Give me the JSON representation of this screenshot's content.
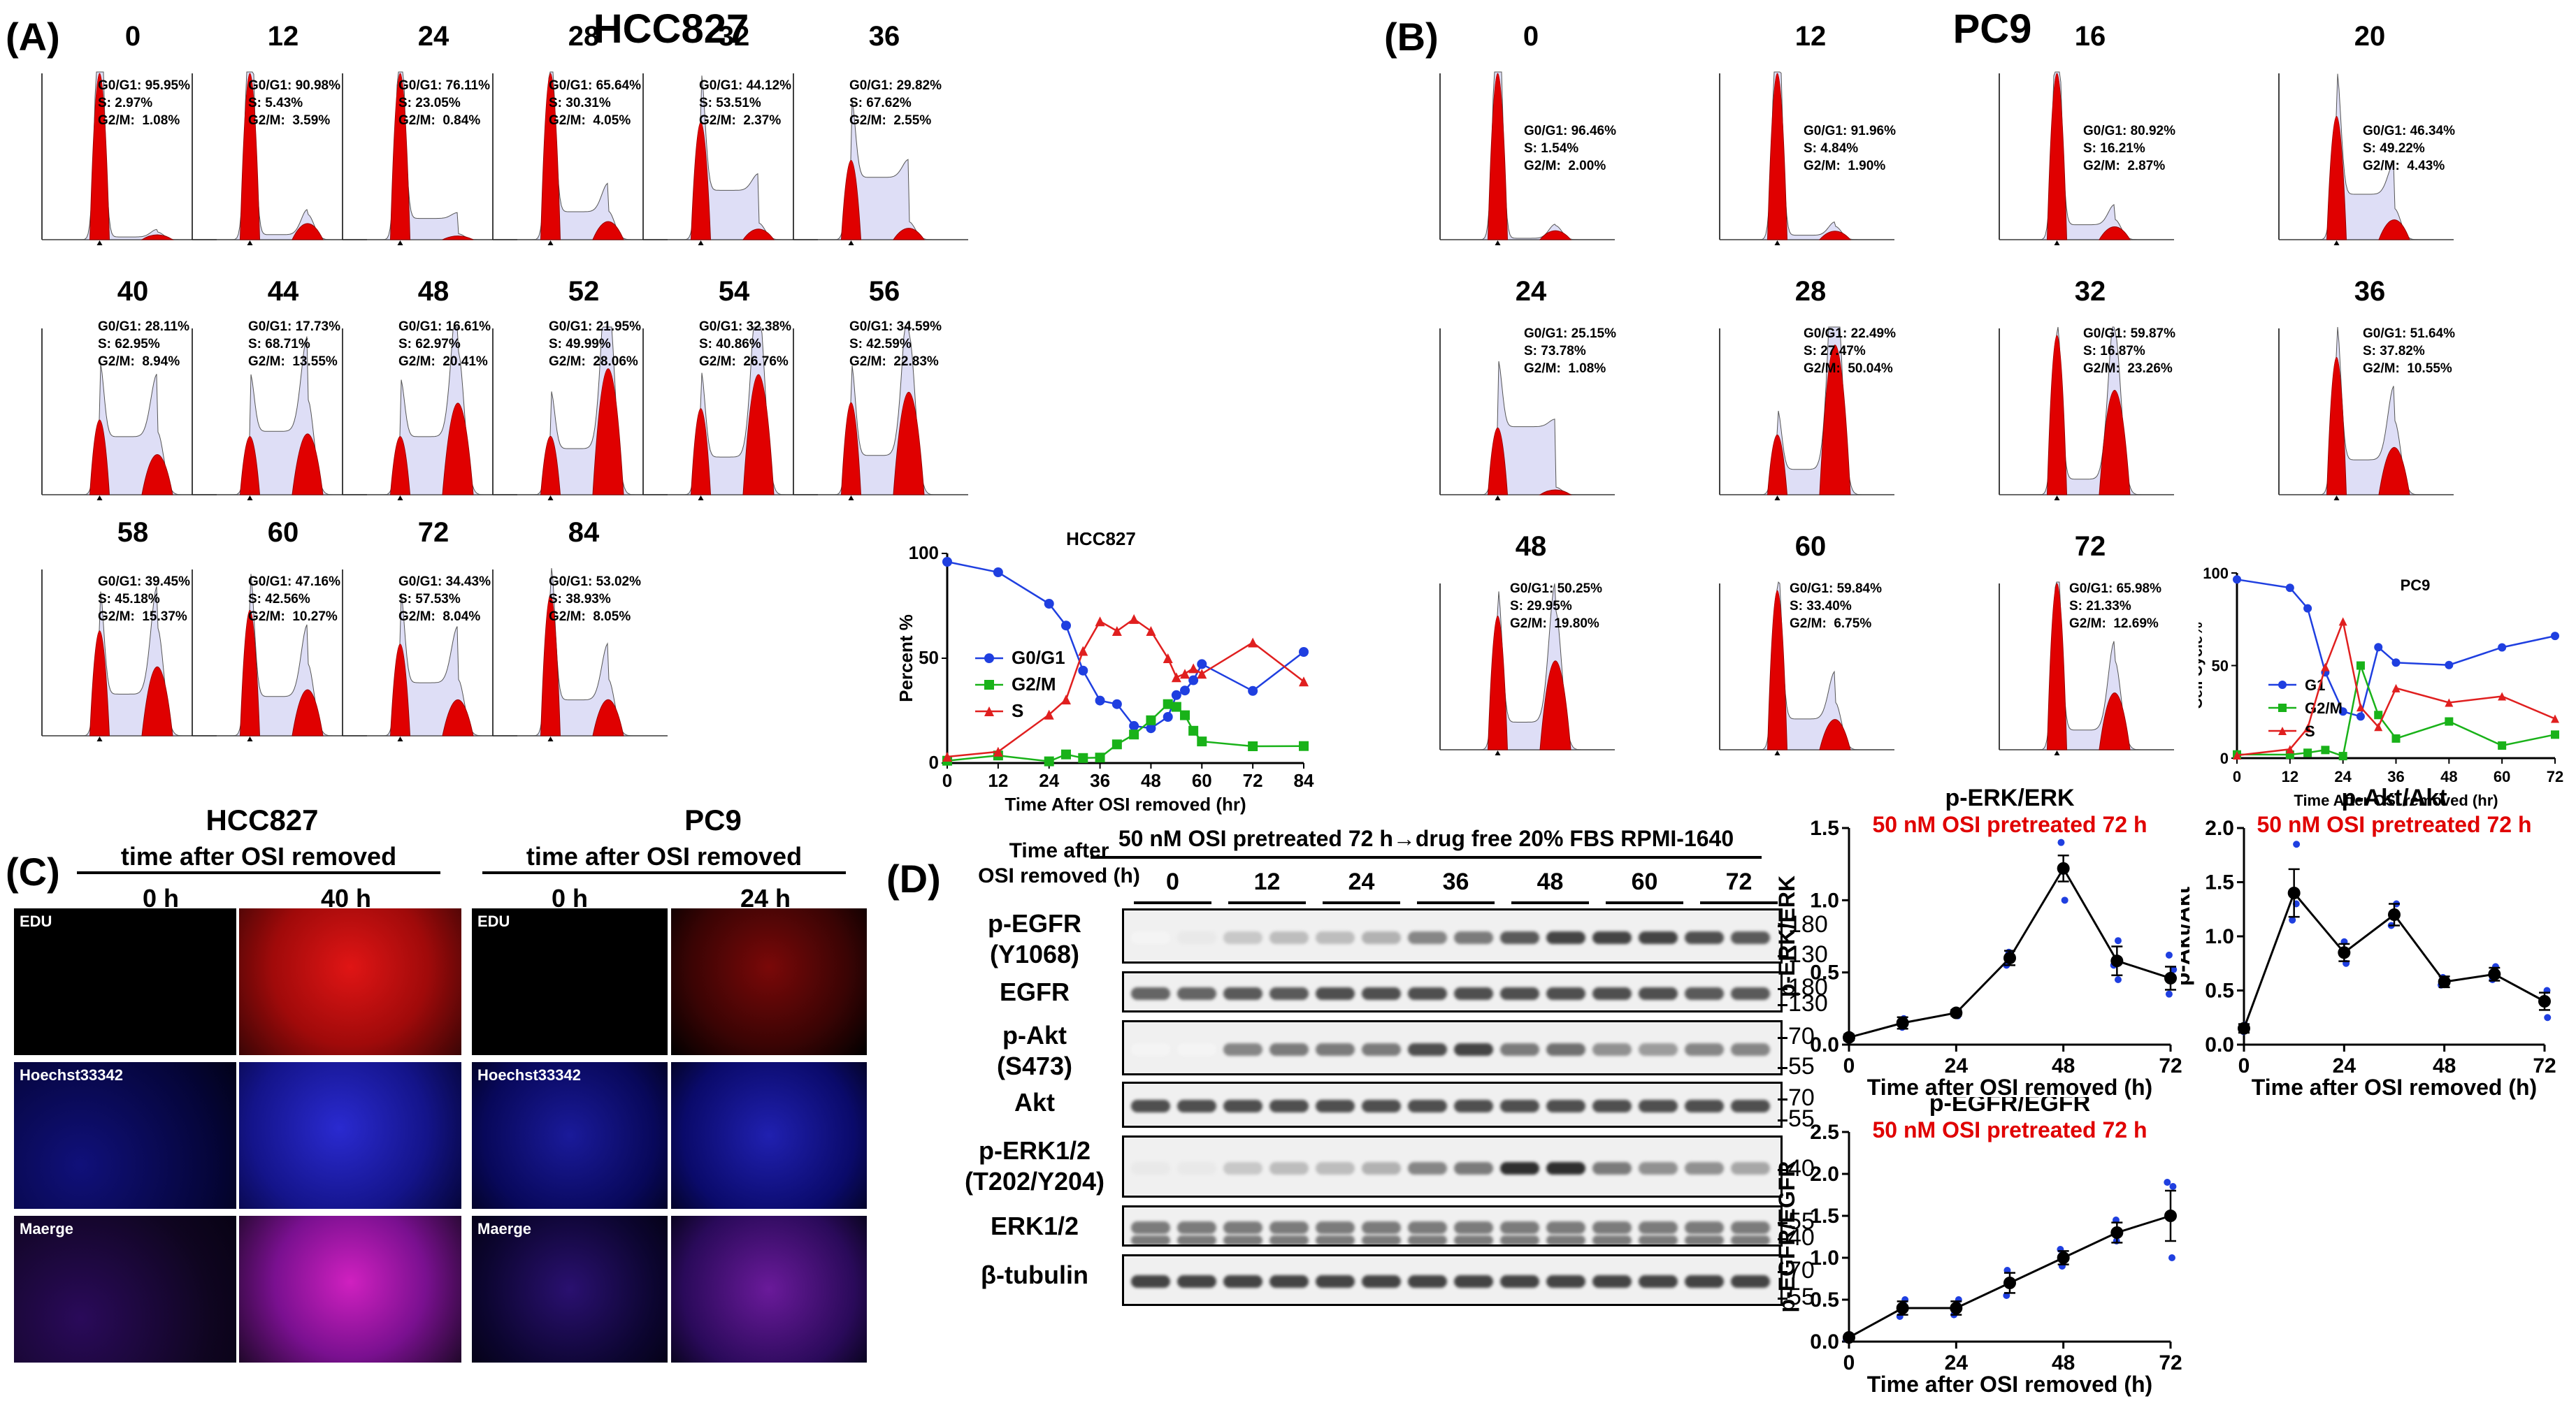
{
  "panel_labels": {
    "A": "(A)",
    "B": "(B)",
    "C": "(C)",
    "D": "(D)"
  },
  "titles": {
    "hcc827": "HCC827",
    "pc9": "PC9"
  },
  "hcc827_hists": [
    {
      "t": "0",
      "g1": "G0/G1: 95.95%",
      "s": "S: 2.97%",
      "g2": "G2/M:  1.08%"
    },
    {
      "t": "12",
      "g1": "G0/G1: 90.98%",
      "s": "S: 5.43%",
      "g2": "G2/M:  3.59%"
    },
    {
      "t": "24",
      "g1": "G0/G1: 76.11%",
      "s": "S: 23.05%",
      "g2": "G2/M:  0.84%"
    },
    {
      "t": "28",
      "g1": "G0/G1: 65.64%",
      "s": "S: 30.31%",
      "g2": "G2/M:  4.05%"
    },
    {
      "t": "32",
      "g1": "G0/G1: 44.12%",
      "s": "S: 53.51%",
      "g2": "G2/M:  2.37%"
    },
    {
      "t": "36",
      "g1": "G0/G1: 29.82%",
      "s": "S: 67.62%",
      "g2": "G2/M:  2.55%"
    },
    {
      "t": "40",
      "g1": "G0/G1: 28.11%",
      "s": "S: 62.95%",
      "g2": "G2/M:  8.94%"
    },
    {
      "t": "44",
      "g1": "G0/G1: 17.73%",
      "s": "S: 68.71%",
      "g2": "G2/M:  13.55%"
    },
    {
      "t": "48",
      "g1": "G0/G1: 16.61%",
      "s": "S: 62.97%",
      "g2": "G2/M:  20.41%"
    },
    {
      "t": "52",
      "g1": "G0/G1: 21.95%",
      "s": "S: 49.99%",
      "g2": "G2/M:  28.06%"
    },
    {
      "t": "54",
      "g1": "G0/G1: 32.38%",
      "s": "S: 40.86%",
      "g2": "G2/M:  26.76%"
    },
    {
      "t": "56",
      "g1": "G0/G1: 34.59%",
      "s": "S: 42.59%",
      "g2": "G2/M:  22.83%"
    },
    {
      "t": "58",
      "g1": "G0/G1: 39.45%",
      "s": "S: 45.18%",
      "g2": "G2/M:  15.37%"
    },
    {
      "t": "60",
      "g1": "G0/G1: 47.16%",
      "s": "S: 42.56%",
      "g2": "G2/M:  10.27%"
    },
    {
      "t": "72",
      "g1": "G0/G1: 34.43%",
      "s": "S: 57.53%",
      "g2": "G2/M:  8.04%"
    },
    {
      "t": "84",
      "g1": "G0/G1: 53.02%",
      "s": "S: 38.93%",
      "g2": "G2/M:  8.05%"
    }
  ],
  "pc9_hists": [
    {
      "t": "0",
      "g1": "G0/G1: 96.46%",
      "s": "S: 1.54%",
      "g2": "G2/M:  2.00%"
    },
    {
      "t": "12",
      "g1": "G0/G1: 91.96%",
      "s": "S: 4.84%",
      "g2": "G2/M:  1.90%"
    },
    {
      "t": "16",
      "g1": "G0/G1: 80.92%",
      "s": "S: 16.21%",
      "g2": "G2/M:  2.87%"
    },
    {
      "t": "20",
      "g1": "G0/G1: 46.34%",
      "s": "S: 49.22%",
      "g2": "G2/M:  4.43%"
    },
    {
      "t": "24",
      "g1": "G0/G1: 25.15%",
      "s": "S: 73.78%",
      "g2": "G2/M:  1.08%"
    },
    {
      "t": "28",
      "g1": "G0/G1: 22.49%",
      "s": "S: 27.47%",
      "g2": "G2/M:  50.04%"
    },
    {
      "t": "32",
      "g1": "G0/G1: 59.87%",
      "s": "S: 16.87%",
      "g2": "G2/M:  23.26%"
    },
    {
      "t": "36",
      "g1": "G0/G1: 51.64%",
      "s": "S: 37.82%",
      "g2": "G2/M:  10.55%"
    },
    {
      "t": "48",
      "g1": "G0/G1: 50.25%",
      "s": "S: 29.95%",
      "g2": "G2/M:  19.80%"
    },
    {
      "t": "60",
      "g1": "G0/G1: 59.84%",
      "s": "S: 33.40%",
      "g2": "G2/M:  6.75%"
    },
    {
      "t": "72",
      "g1": "G0/G1: 65.98%",
      "s": "S: 21.33%",
      "g2": "G2/M:  12.69%"
    }
  ],
  "microscopy": {
    "hcc827": {
      "title": "HCC827",
      "subtitle": "time after OSI removed",
      "cols": [
        "0 h",
        "40 h"
      ]
    },
    "pc9": {
      "title": "PC9",
      "subtitle": "time after OSI removed",
      "cols": [
        "0 h",
        "24 h"
      ]
    },
    "rows": [
      "EDU",
      "Hoechst33342",
      "Maerge"
    ]
  },
  "western": {
    "header": "50 nM OSI pretreated 72 h→drug free 20% FBS RPMI-1640",
    "time_label": "Time after\nOSI removed (h)",
    "times": [
      "0",
      "12",
      "24",
      "36",
      "48",
      "60",
      "72"
    ],
    "blots": [
      {
        "name": "p-EGFR\n(Y1068)",
        "mw": [
          "180",
          "130"
        ]
      },
      {
        "name": "EGFR",
        "mw": [
          "180",
          "130"
        ]
      },
      {
        "name": "p-Akt\n(S473)",
        "mw": [
          "70",
          "55"
        ]
      },
      {
        "name": "Akt",
        "mw": [
          "70",
          "55"
        ]
      },
      {
        "name": "p-ERK1/2\n(T202/Y204)",
        "mw": [
          "40"
        ]
      },
      {
        "name": "ERK1/2",
        "mw": [
          "55",
          "40"
        ]
      },
      {
        "name": "β-tubulin",
        "mw": [
          "70",
          "55"
        ]
      }
    ]
  },
  "chart_data": [
    {
      "type": "line",
      "id": "hcc827-cellcycle",
      "title": "HCC827",
      "xlabel": "Time After OSI removed (hr)",
      "ylabel": "Percent %",
      "xlim": [
        0,
        84
      ],
      "ylim": [
        0,
        100
      ],
      "xticks": [
        0,
        12,
        24,
        36,
        48,
        60,
        72,
        84
      ],
      "yticks": [
        0,
        50,
        100
      ],
      "x": [
        0,
        12,
        24,
        28,
        32,
        36,
        40,
        44,
        48,
        52,
        54,
        56,
        58,
        60,
        72,
        84
      ],
      "series": [
        {
          "name": "G0/G1",
          "color": "#1f3fe0",
          "marker": "circle",
          "values": [
            96,
            91,
            76,
            65.6,
            44.1,
            29.8,
            28.1,
            17.7,
            16.6,
            22,
            32.4,
            34.6,
            39.5,
            47.2,
            34.4,
            53
          ]
        },
        {
          "name": "G2/M",
          "color": "#19b219",
          "marker": "square",
          "values": [
            1.1,
            3.6,
            0.8,
            4.1,
            2.4,
            2.6,
            8.9,
            13.6,
            20.4,
            28.1,
            26.8,
            22.8,
            15.4,
            10.3,
            8,
            8.1
          ]
        },
        {
          "name": "S",
          "color": "#e01f1f",
          "marker": "triangle",
          "values": [
            3,
            5.4,
            23.1,
            30.3,
            53.5,
            67.6,
            63,
            68.7,
            63,
            50,
            40.9,
            42.6,
            45.2,
            42.6,
            57.5,
            38.9
          ]
        }
      ]
    },
    {
      "type": "line",
      "id": "pc9-cellcycle",
      "title": "PC9",
      "xlabel": "Time After OSI removed (hr)",
      "ylabel": "Cell Cycle%",
      "xlim": [
        0,
        72
      ],
      "ylim": [
        0,
        100
      ],
      "xticks": [
        0,
        12,
        24,
        36,
        48,
        60,
        72
      ],
      "yticks": [
        0,
        50,
        100
      ],
      "x": [
        0,
        12,
        16,
        20,
        24,
        28,
        32,
        36,
        48,
        60,
        72
      ],
      "series": [
        {
          "name": "G1",
          "color": "#1f3fe0",
          "marker": "circle",
          "values": [
            96.5,
            92,
            80.9,
            46.3,
            25.2,
            22.5,
            59.9,
            51.6,
            50.3,
            59.8,
            66
          ]
        },
        {
          "name": "G2/M",
          "color": "#19b219",
          "marker": "square",
          "values": [
            2,
            1.9,
            2.9,
            4.4,
            1.1,
            50,
            23.3,
            10.6,
            19.8,
            6.8,
            12.7
          ]
        },
        {
          "name": "S",
          "color": "#e01f1f",
          "marker": "triangle",
          "values": [
            1.5,
            4.8,
            16.2,
            49.2,
            73.8,
            27.5,
            16.9,
            37.8,
            30,
            33.4,
            21.3
          ]
        }
      ]
    },
    {
      "type": "line",
      "id": "perk-erk",
      "title": "p-ERK/ERK",
      "subtitle": "50 nM OSI pretreated 72 h",
      "xlabel": "Time after OSI removed (h)",
      "ylabel": "p-ERK/ERK",
      "xlim": [
        0,
        72
      ],
      "ylim": [
        0,
        1.5
      ],
      "xticks": [
        0,
        24,
        48,
        72
      ],
      "yticks": [
        0.0,
        0.5,
        1.0,
        1.5
      ],
      "x": [
        0,
        12,
        24,
        36,
        48,
        60,
        72
      ],
      "values": [
        0.05,
        0.15,
        0.22,
        0.6,
        1.22,
        0.58,
        0.46
      ],
      "errors": [
        0.02,
        0.04,
        0.02,
        0.05,
        0.09,
        0.1,
        0.08
      ],
      "points": [
        [
          0,
          0.04
        ],
        [
          0,
          0.06
        ],
        [
          12,
          0.12
        ],
        [
          12,
          0.18
        ],
        [
          24,
          0.2
        ],
        [
          24,
          0.23
        ],
        [
          36,
          0.55
        ],
        [
          36,
          0.64
        ],
        [
          48,
          1.4
        ],
        [
          48,
          1.2
        ],
        [
          48,
          1.0
        ],
        [
          60,
          0.72
        ],
        [
          60,
          0.45
        ],
        [
          60,
          0.55
        ],
        [
          72,
          0.35
        ],
        [
          72,
          0.52
        ],
        [
          72,
          0.62
        ]
      ]
    },
    {
      "type": "line",
      "id": "pakt-akt",
      "title": "p-Akt/Akt",
      "subtitle": "50 nM OSI pretreated 72 h",
      "xlabel": "Time after OSI removed (h)",
      "ylabel": "p-Akt/Akt",
      "xlim": [
        0,
        72
      ],
      "ylim": [
        0,
        2.0
      ],
      "xticks": [
        0,
        24,
        48,
        72
      ],
      "yticks": [
        0.0,
        0.5,
        1.0,
        1.5,
        2.0
      ],
      "x": [
        0,
        12,
        24,
        36,
        48,
        60,
        72
      ],
      "values": [
        0.15,
        1.4,
        0.85,
        1.2,
        0.58,
        0.65,
        0.4
      ],
      "errors": [
        0.04,
        0.22,
        0.08,
        0.1,
        0.05,
        0.06,
        0.08
      ],
      "points": [
        [
          0,
          0.12
        ],
        [
          0,
          0.18
        ],
        [
          12,
          1.85
        ],
        [
          12,
          1.15
        ],
        [
          12,
          1.3
        ],
        [
          24,
          0.75
        ],
        [
          24,
          0.95
        ],
        [
          36,
          1.1
        ],
        [
          36,
          1.3
        ],
        [
          48,
          0.55
        ],
        [
          48,
          0.62
        ],
        [
          60,
          0.6
        ],
        [
          60,
          0.72
        ],
        [
          72,
          0.25
        ],
        [
          72,
          0.42
        ],
        [
          72,
          0.5
        ]
      ]
    },
    {
      "type": "line",
      "id": "pegfr-egfr",
      "title": "p-EGFR/EGFR",
      "subtitle": "50 nM OSI pretreated 72 h",
      "xlabel": "Time after OSI removed (h)",
      "ylabel": "p-EGFR/EGFR",
      "xlim": [
        0,
        72
      ],
      "ylim": [
        0,
        2.5
      ],
      "xticks": [
        0,
        24,
        48,
        72
      ],
      "yticks": [
        0.0,
        0.5,
        1.0,
        1.5,
        2.0,
        2.5
      ],
      "x": [
        0,
        12,
        24,
        36,
        48,
        60,
        72
      ],
      "values": [
        0.05,
        0.4,
        0.4,
        0.7,
        1.0,
        1.3,
        1.5
      ],
      "errors": [
        0.02,
        0.08,
        0.08,
        0.12,
        0.08,
        0.12,
        0.3
      ],
      "points": [
        [
          0,
          0.03
        ],
        [
          0,
          0.07
        ],
        [
          12,
          0.3
        ],
        [
          12,
          0.5
        ],
        [
          24,
          0.32
        ],
        [
          24,
          0.5
        ],
        [
          36,
          0.55
        ],
        [
          36,
          0.85
        ],
        [
          48,
          0.9
        ],
        [
          48,
          1.1
        ],
        [
          60,
          1.2
        ],
        [
          60,
          1.45
        ],
        [
          72,
          1.0
        ],
        [
          72,
          1.85
        ],
        [
          72,
          1.9
        ]
      ]
    }
  ]
}
